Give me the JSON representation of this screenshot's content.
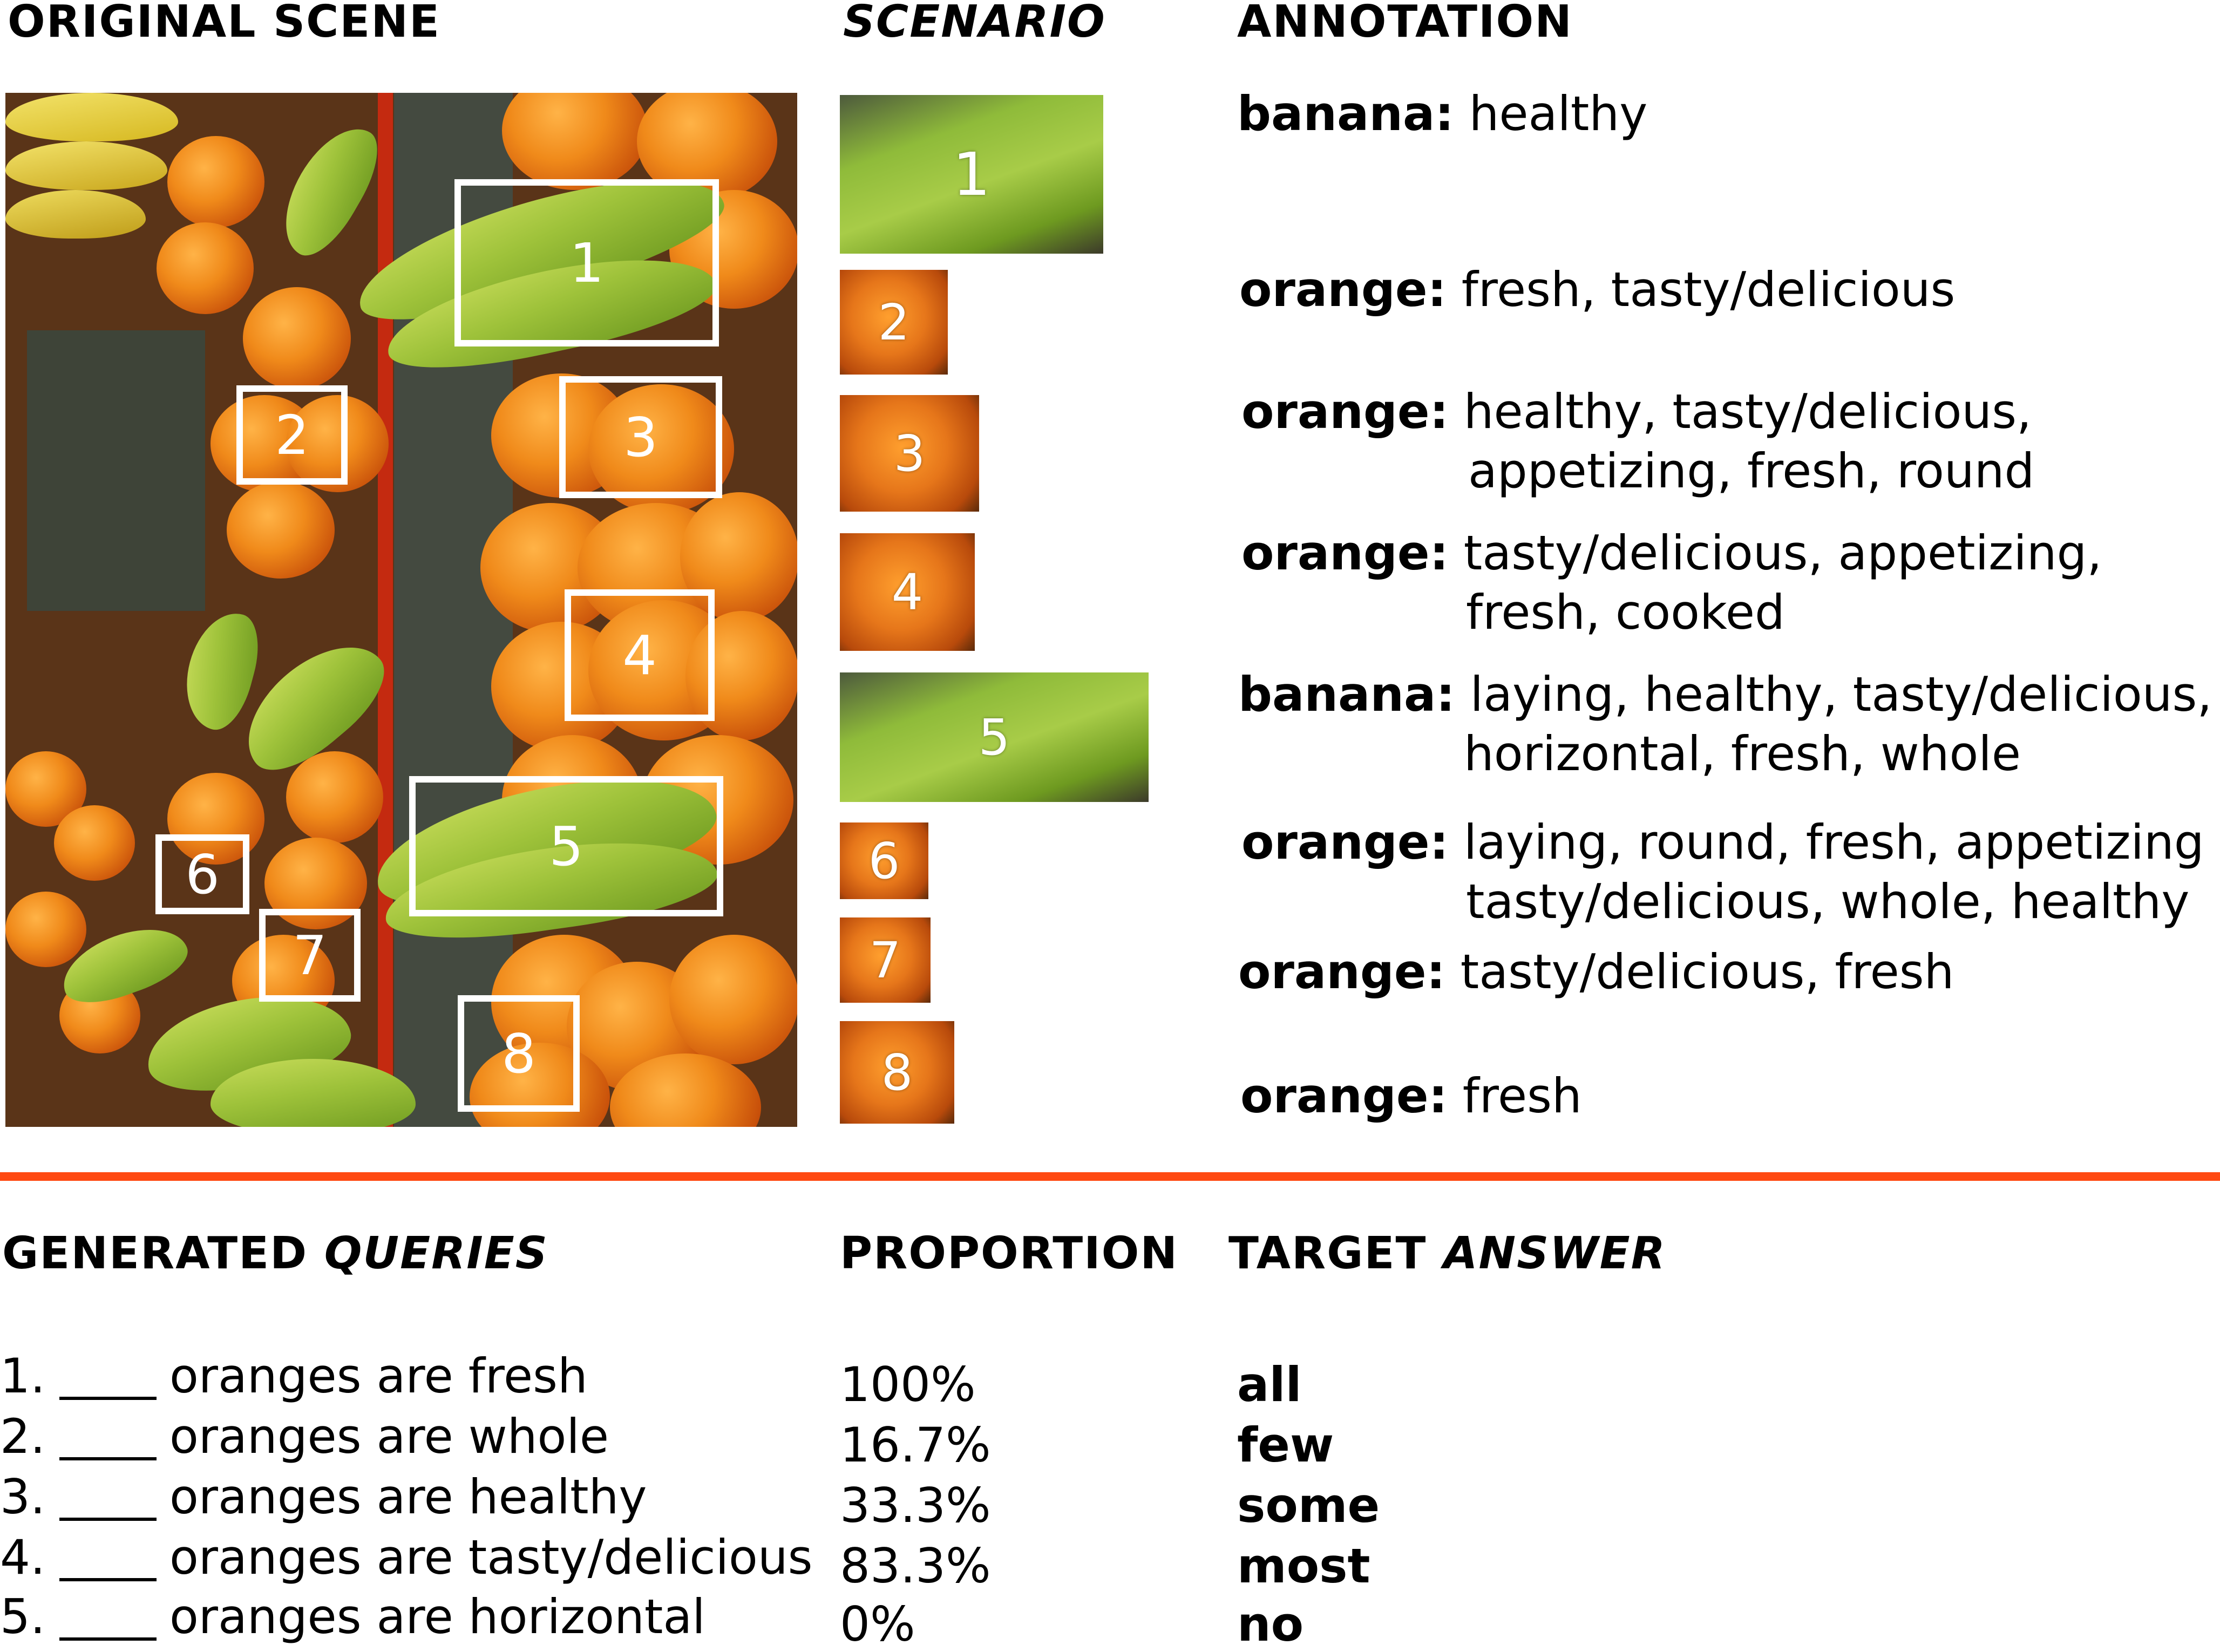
{
  "headers": {
    "original_scene": "ORIGINAL SCENE",
    "scenario": "SCENARIO",
    "annotation": "ANNOTATION",
    "generated": "GENERATED",
    "queries": "QUERIES",
    "proportion": "PROPORTION",
    "target": "TARGET",
    "answer": "ANSWER"
  },
  "boxes": [
    "1",
    "2",
    "3",
    "4",
    "5",
    "6",
    "7",
    "8"
  ],
  "annotations": [
    {
      "label": "banana:",
      "attrs": [
        "healthy"
      ]
    },
    {
      "label": "orange:",
      "attrs": [
        "fresh, tasty/delicious"
      ]
    },
    {
      "label": "orange:",
      "attrs": [
        "healthy, tasty/delicious,",
        "appetizing, fresh, round"
      ]
    },
    {
      "label": "orange:",
      "attrs": [
        "tasty/delicious, appetizing,",
        "fresh, cooked"
      ]
    },
    {
      "label": "banana:",
      "attrs": [
        "laying, healthy, tasty/delicious,",
        "horizontal, fresh, whole"
      ]
    },
    {
      "label": "orange:",
      "attrs": [
        "laying, round, fresh, appetizing",
        "tasty/delicious, whole, healthy"
      ]
    },
    {
      "label": "orange:",
      "attrs": [
        "tasty/delicious, fresh"
      ]
    },
    {
      "label": "orange:",
      "attrs": [
        "fresh"
      ]
    }
  ],
  "queries": [
    {
      "num": "1.",
      "text": "oranges are fresh",
      "proportion": "100%",
      "answer": "all"
    },
    {
      "num": "2.",
      "text": "oranges are whole",
      "proportion": "16.7%",
      "answer": "few"
    },
    {
      "num": "3.",
      "text": "oranges are healthy",
      "proportion": "33.3%",
      "answer": "some"
    },
    {
      "num": "4.",
      "text": "oranges are tasty/delicious",
      "proportion": "83.3%",
      "answer": "most"
    },
    {
      "num": "5.",
      "text": "oranges are horizontal",
      "proportion": "0%",
      "answer": "no"
    }
  ],
  "colors": {
    "divider": "#ff4a12",
    "box_border": "#ffffff"
  }
}
